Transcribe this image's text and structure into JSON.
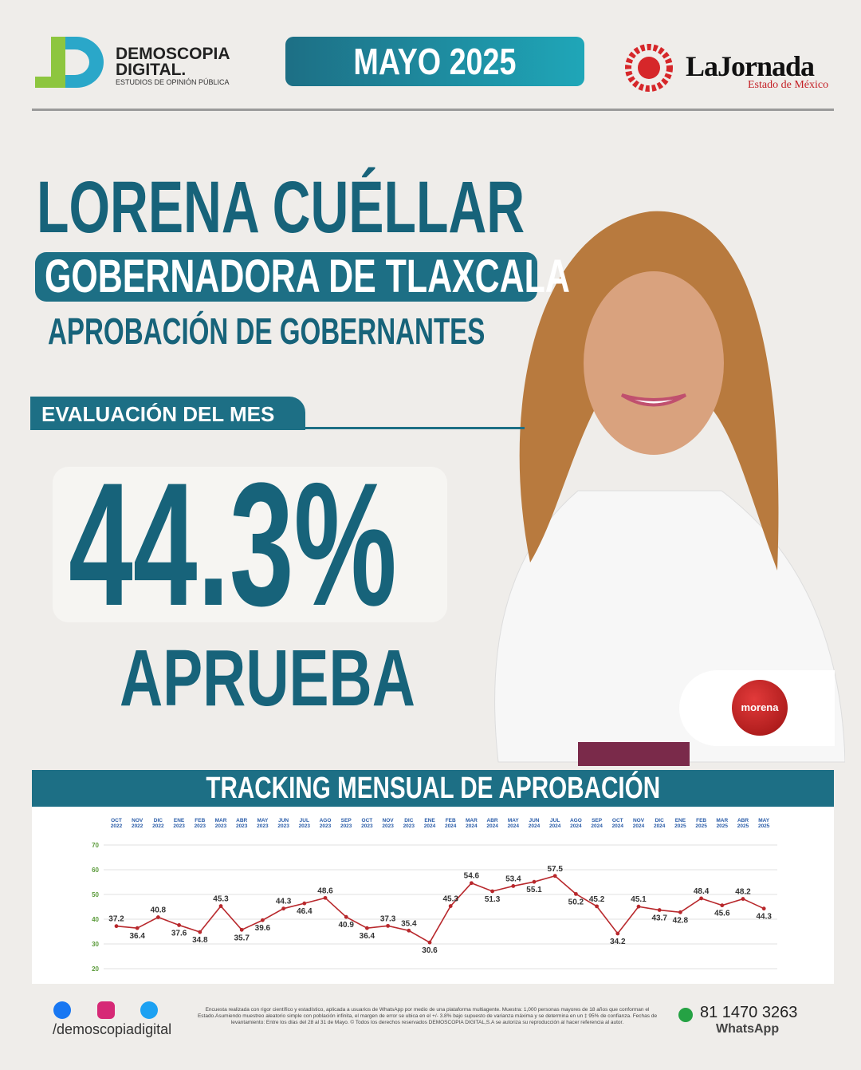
{
  "header": {
    "brand": "DEMOSCOPIA",
    "brand_line2": "DIGITAL.",
    "brand_tagline": "ESTUDIOS DE OPINIÓN PÚBLICA",
    "period": "MAYO 2025",
    "partner": "LaJornada",
    "partner_sub": "Estado de México"
  },
  "headline": {
    "name": "LORENA CUÉLLAR",
    "role": "GOBERNADORA DE TLAXCALA",
    "topic": "APROBACIÓN DE GOBERNANTES"
  },
  "result": {
    "label": "EVALUACIÓN DEL MES",
    "value": "44.3%",
    "caption": "APRUEBA",
    "party": "morena"
  },
  "chart_data": {
    "type": "line",
    "title": "TRACKING MENSUAL DE APROBACIÓN",
    "categories": [
      "OCT 2022",
      "NOV 2022",
      "DIC 2022",
      "ENE 2023",
      "FEB 2023",
      "MAR 2023",
      "ABR 2023",
      "MAY 2023",
      "JUN 2023",
      "JUL 2023",
      "AGO 2023",
      "SEP 2023",
      "OCT 2023",
      "NOV 2023",
      "DIC 2023",
      "ENE 2024",
      "FEB 2024",
      "MAR 2024",
      "ABR 2024",
      "MAY 2024",
      "JUN 2024",
      "JUL 2024",
      "AGO 2024",
      "SEP 2024",
      "OCT 2024",
      "NOV 2024",
      "DIC 2024",
      "ENE 2025",
      "FEB 2025",
      "MAR 2025",
      "ABR 2025",
      "MAY 2025"
    ],
    "values": [
      37.2,
      36.4,
      40.8,
      37.6,
      34.8,
      45.3,
      35.7,
      39.6,
      44.3,
      46.4,
      48.6,
      40.9,
      36.4,
      37.3,
      35.4,
      30.6,
      45.3,
      54.6,
      51.3,
      53.4,
      55.1,
      57.5,
      50.2,
      45.2,
      34.2,
      45.1,
      43.7,
      42.8,
      48.4,
      45.6,
      48.2,
      44.3
    ],
    "color": "#b8282c",
    "ylim": [
      20,
      70
    ],
    "yticks": [
      20,
      30,
      40,
      50,
      60,
      70
    ],
    "grid": true
  },
  "footer": {
    "handle": "/demoscopiadigital",
    "disclaimer": "Encuesta realizada con rigor científico y estadístico, aplicada a usuarios de WhatsApp por medio de una plataforma multiagente. Muestra: 1,000 personas mayores de 18 años que conforman el Estado.Asumiendo muestreo aleatorio simple con población infinita, el margen de error se ubica en el +/- 3.8% bajo supuesto de varianza máxima y se determina en un ‡ 95% de confianza. Fechas de levantamiento: Entre los días del 28 al 31 de Mayo. © Todos los derechos reservados DEMOSCOPIA DIGITAL,S.A se autoriza su reproducción al hacer referencia al autor.",
    "phone": "81 1470 3263",
    "phone_channel": "WhatsApp"
  }
}
